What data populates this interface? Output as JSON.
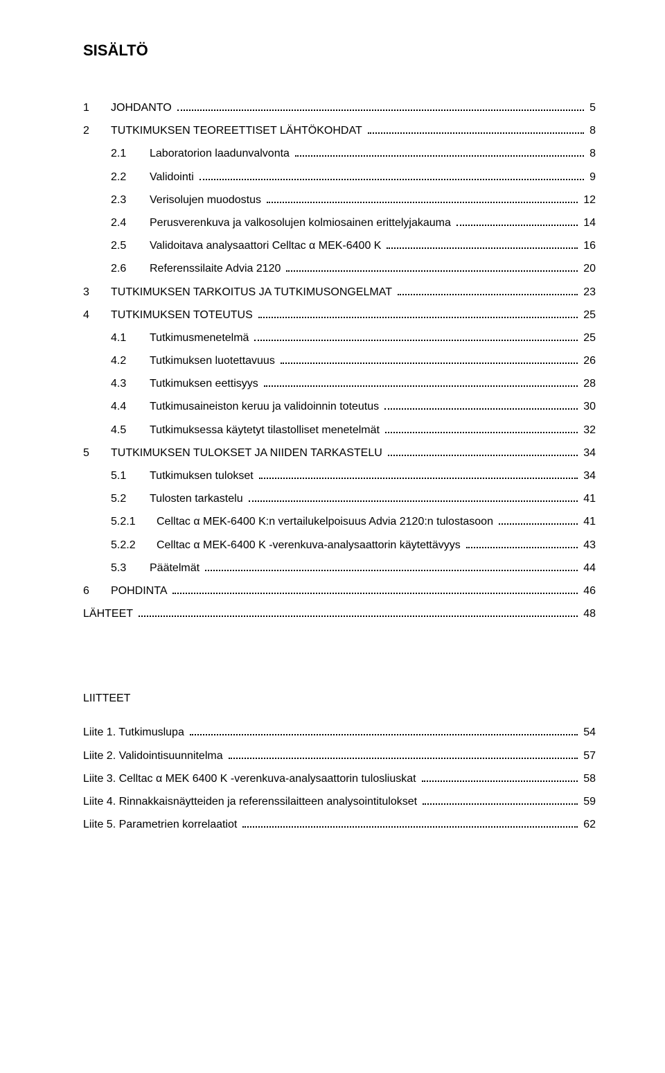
{
  "title": "SISÄLTÖ",
  "appendix_heading": "LIITTEET",
  "toc": [
    {
      "num": "1",
      "label": "JOHDANTO",
      "page": "5",
      "level": 1,
      "caps": true
    },
    {
      "num": "2",
      "label": "TUTKIMUKSEN TEOREETTISET LÄHTÖKOHDAT",
      "page": "8",
      "level": 1,
      "caps": true
    },
    {
      "num": "2.1",
      "label": "Laboratorion laadunvalvonta",
      "page": "8",
      "level": 2
    },
    {
      "num": "2.2",
      "label": "Validointi",
      "page": "9",
      "level": 2
    },
    {
      "num": "2.3",
      "label": "Verisolujen muodostus",
      "page": "12",
      "level": 2
    },
    {
      "num": "2.4",
      "label": "Perusverenkuva ja valkosolujen kolmiosainen erittelyjakauma",
      "page": "14",
      "level": 2
    },
    {
      "num": "2.5",
      "label": "Validoitava analysaattori Celltac α MEK-6400 K",
      "page": "16",
      "level": 2
    },
    {
      "num": "2.6",
      "label": "Referenssilaite Advia 2120",
      "page": "20",
      "level": 2
    },
    {
      "num": "3",
      "label": "TUTKIMUKSEN TARKOITUS JA TUTKIMUSONGELMAT",
      "page": "23",
      "level": 1,
      "caps": true
    },
    {
      "num": "4",
      "label": "TUTKIMUKSEN TOTEUTUS",
      "page": "25",
      "level": 1,
      "caps": true
    },
    {
      "num": "4.1",
      "label": "Tutkimusmenetelmä",
      "page": "25",
      "level": 2
    },
    {
      "num": "4.2",
      "label": "Tutkimuksen luotettavuus",
      "page": "26",
      "level": 2
    },
    {
      "num": "4.3",
      "label": "Tutkimuksen eettisyys",
      "page": "28",
      "level": 2
    },
    {
      "num": "4.4",
      "label": "Tutkimusaineiston keruu ja validoinnin toteutus",
      "page": "30",
      "level": 2
    },
    {
      "num": "4.5",
      "label": "Tutkimuksessa käytetyt tilastolliset menetelmät",
      "page": "32",
      "level": 2
    },
    {
      "num": "5",
      "label": "TUTKIMUKSEN TULOKSET JA NIIDEN TARKASTELU",
      "page": "34",
      "level": 1,
      "caps": true
    },
    {
      "num": "5.1",
      "label": "Tutkimuksen tulokset",
      "page": "34",
      "level": 2
    },
    {
      "num": "5.2",
      "label": "Tulosten tarkastelu",
      "page": "41",
      "level": 2
    },
    {
      "num": "5.2.1",
      "label": "Celltac α MEK-6400 K:n vertailukelpoisuus Advia 2120:n tulostasoon",
      "page": "41",
      "level": 3
    },
    {
      "num": "5.2.2",
      "label": "Celltac α MEK-6400 K -verenkuva-analysaattorin käytettävyys",
      "page": "43",
      "level": 3
    },
    {
      "num": "5.3",
      "label": "Päätelmät",
      "page": "44",
      "level": 2
    },
    {
      "num": "6",
      "label": "POHDINTA",
      "page": "46",
      "level": 1,
      "caps": true
    },
    {
      "num": "",
      "label": "LÄHTEET",
      "page": "48",
      "level": 0,
      "caps": true
    }
  ],
  "appendix": [
    {
      "num": "",
      "label": "Liite 1. Tutkimuslupa",
      "page": "54",
      "level": 0
    },
    {
      "num": "",
      "label": "Liite 2. Validointisuunnitelma",
      "page": "57",
      "level": 0
    },
    {
      "num": "",
      "label": "Liite 3. Celltac α MEK 6400 K -verenkuva-analysaattorin tulosliuskat",
      "page": "58",
      "level": 0
    },
    {
      "num": "",
      "label": "Liite 4. Rinnakkaisnäytteiden ja referenssilaitteen analysointitulokset",
      "page": "59",
      "level": 0
    },
    {
      "num": "",
      "label": "Liite 5. Parametrien korrelaatiot",
      "page": "62",
      "level": 0
    }
  ]
}
